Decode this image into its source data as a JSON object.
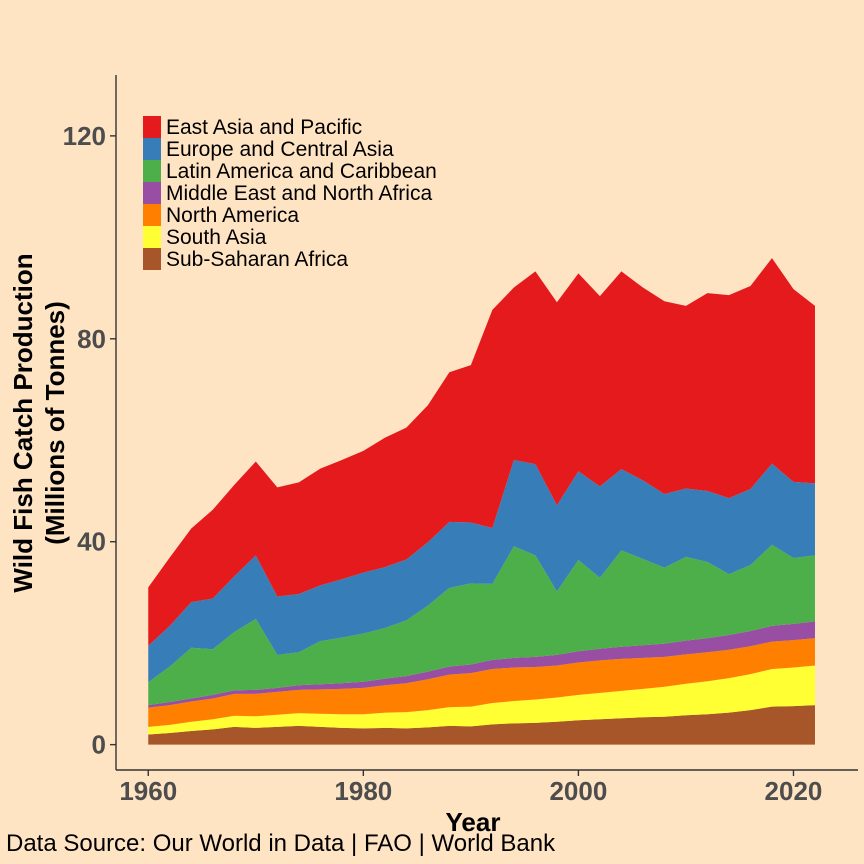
{
  "caption": "Data Source: Our World in Data | FAO | World Bank",
  "chart_data": {
    "type": "area",
    "stacked": true,
    "xlabel": "Year",
    "ylabel": [
      "Wild Fish Catch Production",
      "(Millions of Tonnes)"
    ],
    "xlim": [
      1957,
      2026
    ],
    "ylim": [
      -5,
      132
    ],
    "xticks": [
      1960,
      1980,
      2000,
      2020
    ],
    "yticks": [
      0,
      40,
      80,
      120
    ],
    "grid": false,
    "legend_position": "top-left",
    "x": [
      1960,
      1962,
      1964,
      1966,
      1968,
      1970,
      1972,
      1974,
      1976,
      1978,
      1980,
      1982,
      1984,
      1986,
      1988,
      1990,
      1992,
      1994,
      1996,
      1998,
      2000,
      2002,
      2004,
      2006,
      2008,
      2010,
      2012,
      2014,
      2016,
      2018,
      2020,
      2022
    ],
    "series": [
      {
        "name": "Sub-Saharan Africa",
        "color": "#A65628",
        "values": [
          2.0,
          2.3,
          2.7,
          3.0,
          3.5,
          3.3,
          3.5,
          3.7,
          3.5,
          3.3,
          3.2,
          3.3,
          3.2,
          3.4,
          3.7,
          3.6,
          4.0,
          4.2,
          4.3,
          4.5,
          4.8,
          5.0,
          5.2,
          5.4,
          5.5,
          5.8,
          6.0,
          6.3,
          6.8,
          7.5,
          7.6,
          7.8
        ]
      },
      {
        "name": "South Asia",
        "color": "#FFFF33",
        "values": [
          1.5,
          1.6,
          1.8,
          2.0,
          2.2,
          2.3,
          2.4,
          2.5,
          2.6,
          2.7,
          2.8,
          3.0,
          3.2,
          3.4,
          3.7,
          3.9,
          4.2,
          4.4,
          4.6,
          4.8,
          5.0,
          5.2,
          5.4,
          5.6,
          5.9,
          6.2,
          6.5,
          6.8,
          7.1,
          7.4,
          7.6,
          7.8
        ]
      },
      {
        "name": "North America",
        "color": "#FF7F00",
        "values": [
          3.8,
          3.9,
          4.0,
          4.1,
          4.3,
          4.4,
          4.5,
          4.6,
          4.8,
          5.0,
          5.2,
          5.4,
          5.7,
          6.1,
          6.4,
          6.6,
          6.7,
          6.6,
          6.4,
          6.3,
          6.4,
          6.4,
          6.3,
          6.1,
          5.9,
          5.8,
          5.7,
          5.6,
          5.5,
          5.4,
          5.4,
          5.4
        ]
      },
      {
        "name": "Middle East and North Africa",
        "color": "#984EA3",
        "values": [
          0.5,
          0.6,
          0.6,
          0.7,
          0.7,
          0.8,
          0.8,
          0.9,
          1.0,
          1.1,
          1.2,
          1.3,
          1.4,
          1.5,
          1.6,
          1.7,
          1.8,
          1.9,
          2.0,
          2.1,
          2.2,
          2.3,
          2.4,
          2.5,
          2.6,
          2.7,
          2.8,
          2.9,
          3.0,
          3.1,
          3.2,
          3.3
        ]
      },
      {
        "name": "Latin America and Caribbean",
        "color": "#4DAF4A",
        "values": [
          4.5,
          7.0,
          10.0,
          9.0,
          11.5,
          14.0,
          6.5,
          6.5,
          8.5,
          9.0,
          9.5,
          10.0,
          11.0,
          13.0,
          15.5,
          16.0,
          15.0,
          22.0,
          20.0,
          12.5,
          18.0,
          14.0,
          19.0,
          17.0,
          15.0,
          16.5,
          15.0,
          12.0,
          13.0,
          16.0,
          13.0,
          13.0
        ]
      },
      {
        "name": "Europe and Central Asia",
        "color": "#377EB8",
        "values": [
          7.2,
          8.0,
          9.0,
          10.0,
          11.0,
          12.5,
          11.5,
          11.5,
          11.0,
          11.5,
          12.0,
          12.0,
          12.0,
          12.5,
          13.0,
          12.0,
          11.0,
          17.0,
          18.0,
          17.0,
          17.5,
          18.0,
          16.0,
          15.5,
          14.5,
          13.5,
          14.0,
          15.0,
          15.0,
          16.0,
          15.0,
          14.2
        ]
      },
      {
        "name": "East Asia and Pacific",
        "color": "#E41A1C",
        "values": [
          11.5,
          13.5,
          14.5,
          17.5,
          18.0,
          18.5,
          21.5,
          22.0,
          23.0,
          23.5,
          24.0,
          25.5,
          26.0,
          27.0,
          29.5,
          31.0,
          43.0,
          34.0,
          38.0,
          40.0,
          39.0,
          37.5,
          39.0,
          38.0,
          38.0,
          36.0,
          39.0,
          40.0,
          40.0,
          40.5,
          38.0,
          35.0
        ]
      }
    ]
  }
}
